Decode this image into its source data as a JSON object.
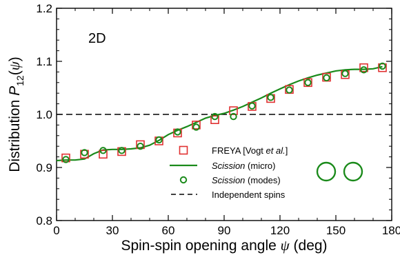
{
  "chart_data": {
    "type": "line",
    "panel_label": "2D",
    "xlabel": {
      "prefix": "Spin-spin opening angle ",
      "symbol": "ψ",
      "suffix": " (deg)"
    },
    "ylabel": {
      "prefix": "Distribution ",
      "symbol": "P",
      "subscript": "12",
      "open": "(",
      "arg": "ψ",
      "close": ")"
    },
    "xlim": [
      0,
      180
    ],
    "ylim": [
      0.8,
      1.2
    ],
    "xticks": [
      "0",
      "30",
      "60",
      "90",
      "120",
      "150",
      "180"
    ],
    "yticks": [
      "0.8",
      "0.9",
      "1.0",
      "1.1",
      "1.2"
    ],
    "grid": false,
    "legend_position": "bottom-right",
    "series": [
      {
        "name": "FREYA [Vogt et al.]",
        "legend_parts": [
          "FREYA [Vogt ",
          "et al.",
          "]"
        ],
        "marker": "square",
        "color": "#e03030",
        "x": [
          5,
          15,
          25,
          35,
          45,
          55,
          65,
          75,
          85,
          95,
          105,
          115,
          125,
          135,
          145,
          155,
          165,
          175
        ],
        "y": [
          0.918,
          0.925,
          0.925,
          0.93,
          0.943,
          0.95,
          0.965,
          0.98,
          0.99,
          1.007,
          1.015,
          1.03,
          1.047,
          1.06,
          1.07,
          1.075,
          1.088,
          1.088
        ]
      },
      {
        "name": "Scission (micro)",
        "legend_parts": [
          "Scission",
          " (micro)"
        ],
        "marker": "line",
        "color": "#1a8a1a",
        "x": [
          0,
          5,
          10,
          15,
          20,
          25,
          30,
          35,
          40,
          45,
          50,
          55,
          60,
          65,
          70,
          75,
          80,
          85,
          90,
          95,
          100,
          105,
          110,
          115,
          120,
          125,
          130,
          135,
          140,
          145,
          150,
          155,
          160,
          165,
          170,
          175
        ],
        "y": [
          0.913,
          0.914,
          0.914,
          0.916,
          0.926,
          0.933,
          0.934,
          0.934,
          0.935,
          0.937,
          0.942,
          0.951,
          0.962,
          0.97,
          0.977,
          0.985,
          0.993,
          0.998,
          1.002,
          1.008,
          1.015,
          1.023,
          1.031,
          1.04,
          1.048,
          1.056,
          1.063,
          1.069,
          1.074,
          1.078,
          1.082,
          1.084,
          1.085,
          1.085,
          1.086,
          1.09
        ]
      },
      {
        "name": "Scission (modes)",
        "legend_parts": [
          "Scission",
          " (modes)"
        ],
        "marker": "circle",
        "color": "#1a8a1a",
        "x": [
          5,
          15,
          25,
          35,
          45,
          55,
          65,
          75,
          85,
          95,
          105,
          115,
          125,
          135,
          145,
          155,
          165,
          175
        ],
        "y": [
          0.915,
          0.928,
          0.932,
          0.932,
          0.94,
          0.952,
          0.967,
          0.976,
          0.996,
          0.996,
          1.016,
          1.032,
          1.046,
          1.06,
          1.069,
          1.077,
          1.084,
          1.091
        ]
      },
      {
        "name": "Independent spins",
        "legend_parts": [
          "Independent spins"
        ],
        "marker": "dashed",
        "color": "#000000",
        "x": [
          0,
          180
        ],
        "y": [
          1.0,
          1.0
        ]
      }
    ]
  }
}
